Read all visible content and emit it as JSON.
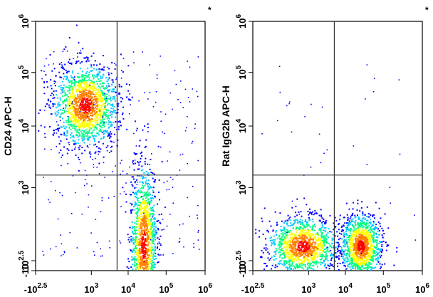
{
  "chart_data": [
    {
      "type": "scatter",
      "subtype": "flow-cytometry-density-pseudocolor",
      "corner_mark": "*",
      "ylabel": "CD24 APC-H",
      "xlabel": "",
      "x_scale": "biexponential-log",
      "y_scale": "biexponential-log",
      "x_ticks": [
        {
          "base": "-10",
          "exp": "2.5",
          "value": -316
        },
        {
          "base": "10",
          "exp": "3",
          "value": 1000
        },
        {
          "base": "10",
          "exp": "4",
          "value": 10000
        },
        {
          "base": "10",
          "exp": "5",
          "value": 100000
        },
        {
          "base": "10",
          "exp": "6",
          "value": 1000000
        }
      ],
      "y_ticks": [
        {
          "base": "-10",
          "exp": "",
          "value": -10
        },
        {
          "base": "10",
          "exp": "2.5",
          "value": 316
        },
        {
          "base": "10",
          "exp": "3",
          "value": 1000
        },
        {
          "base": "10",
          "exp": "4",
          "value": 10000
        },
        {
          "base": "10",
          "exp": "5",
          "value": 100000
        },
        {
          "base": "10",
          "exp": "6",
          "value": 1000000
        }
      ],
      "quadrant_gate": {
        "x": 5000,
        "y": 1600
      },
      "populations": [
        {
          "x_center": 500,
          "y_center": 25000,
          "spread": "high",
          "density": "high"
        },
        {
          "x_center": 25000,
          "y_center": 400,
          "spread": "tall",
          "density": "high"
        }
      ]
    },
    {
      "type": "scatter",
      "subtype": "flow-cytometry-density-pseudocolor",
      "corner_mark": "*",
      "ylabel": "Rat IgG2b APC-H",
      "xlabel": "",
      "x_scale": "biexponential-log",
      "y_scale": "biexponential-log",
      "x_ticks": [
        {
          "base": "-10",
          "exp": "2.5",
          "value": -316
        },
        {
          "base": "10",
          "exp": "3",
          "value": 1000
        },
        {
          "base": "10",
          "exp": "4",
          "value": 10000
        },
        {
          "base": "10",
          "exp": "5",
          "value": 100000
        },
        {
          "base": "10",
          "exp": "6",
          "value": 1000000
        }
      ],
      "y_ticks": [
        {
          "base": "-10",
          "exp": "",
          "value": -10
        },
        {
          "base": "10",
          "exp": "2.5",
          "value": 316
        },
        {
          "base": "10",
          "exp": "3",
          "value": 1000
        },
        {
          "base": "10",
          "exp": "4",
          "value": 10000
        },
        {
          "base": "10",
          "exp": "5",
          "value": 100000
        },
        {
          "base": "10",
          "exp": "6",
          "value": 1000000
        }
      ],
      "quadrant_gate": {
        "x": 5000,
        "y": 1600
      },
      "populations": [
        {
          "x_center": 500,
          "y_center": 400,
          "spread": "round",
          "density": "high"
        },
        {
          "x_center": 25000,
          "y_center": 400,
          "spread": "round",
          "density": "high"
        }
      ]
    }
  ],
  "colors": {
    "density_scale": [
      "#0000ff",
      "#00c8ff",
      "#00ff80",
      "#ffff00",
      "#ff8000",
      "#ff0000"
    ],
    "gate_line": "#333333",
    "frame": "#000000"
  }
}
